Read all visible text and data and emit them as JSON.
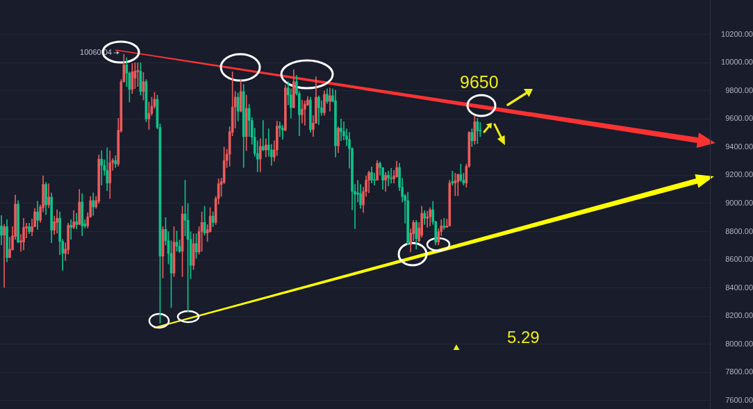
{
  "chart_data": {
    "type": "candlestick",
    "categories": [
      null,
      null,
      null,
      null,
      null,
      null,
      null,
      null,
      null,
      null,
      null,
      null,
      null,
      null,
      null,
      null,
      null,
      null,
      null,
      null,
      null,
      null,
      null,
      null,
      null,
      null,
      null,
      null,
      null,
      null,
      null,
      null,
      null,
      null,
      null,
      null,
      null,
      null,
      null,
      null,
      null,
      null,
      null,
      null,
      null,
      null,
      null,
      null,
      null,
      null,
      null,
      null,
      null,
      null,
      null,
      null,
      null,
      null,
      null,
      null,
      null,
      null,
      null,
      null,
      null,
      null,
      null,
      null,
      null,
      null,
      null,
      null,
      null,
      null,
      null,
      null,
      null,
      null,
      null,
      null,
      null,
      null,
      null,
      null,
      null,
      null,
      null,
      null,
      null,
      null,
      null,
      null,
      null,
      null,
      null,
      null,
      null,
      null,
      null,
      null,
      null,
      null,
      null,
      null,
      null,
      null,
      null,
      null,
      null,
      null,
      null,
      null,
      null,
      null,
      null,
      null,
      null,
      null,
      null,
      null,
      null,
      null,
      null,
      null,
      null,
      null,
      null,
      null,
      null,
      null,
      null,
      null,
      null,
      null,
      null,
      null,
      null,
      null,
      null,
      null,
      null,
      null,
      null,
      null,
      null,
      null,
      null,
      null,
      null,
      null,
      null,
      null,
      null,
      null,
      null,
      null,
      null,
      null,
      null,
      null,
      null,
      null,
      null,
      null,
      null,
      null,
      null,
      null,
      null,
      null,
      null,
      null,
      null,
      null,
      null,
      null,
      null,
      null,
      null,
      null,
      null,
      null,
      null,
      null,
      null,
      null,
      null,
      null,
      null,
      null,
      null,
      null,
      null,
      null,
      null,
      null,
      null,
      null,
      null,
      null,
      null,
      null,
      null,
      null,
      null,
      null,
      null,
      null,
      null,
      null,
      null,
      null,
      null,
      null,
      null,
      null,
      null,
      null,
      null,
      null,
      null,
      null,
      null,
      null,
      null,
      null,
      null,
      null,
      null,
      null,
      null,
      null,
      null,
      null,
      null,
      null,
      null,
      null,
      null,
      null,
      null,
      null,
      null,
      null,
      null,
      null,
      null,
      null,
      null,
      null,
      null,
      null,
      null,
      null,
      null
    ],
    "ohlc": [
      [
        8840,
        8915,
        8705,
        8775
      ],
      [
        8775,
        8850,
        8405,
        8835
      ],
      [
        8835,
        8885,
        8585,
        8615
      ],
      [
        8615,
        8760,
        8615,
        8675
      ],
      [
        8670,
        8835,
        8670,
        8770
      ],
      [
        8765,
        9060,
        8745,
        8995
      ],
      [
        8995,
        9020,
        8720,
        8725
      ],
      [
        8725,
        8780,
        8660,
        8735
      ],
      [
        8725,
        8895,
        8670,
        8830
      ],
      [
        8825,
        8860,
        8755,
        8835
      ],
      [
        8835,
        8860,
        8785,
        8800
      ],
      [
        8800,
        8890,
        8770,
        8835
      ],
      [
        8835,
        8965,
        8835,
        8940
      ],
      [
        8940,
        9015,
        8815,
        8880
      ],
      [
        8880,
        8990,
        8865,
        8975
      ],
      [
        8970,
        9195,
        8940,
        9135
      ],
      [
        9135,
        9150,
        8920,
        8990
      ],
      [
        8990,
        9140,
        8970,
        9045
      ],
      [
        9045,
        9075,
        8720,
        8810
      ],
      [
        8810,
        8910,
        8780,
        8870
      ],
      [
        8865,
        8955,
        8790,
        8895
      ],
      [
        8895,
        8940,
        8635,
        8730
      ],
      [
        8730,
        8745,
        8525,
        8645
      ],
      [
        8645,
        8720,
        8595,
        8675
      ],
      [
        8670,
        8860,
        8640,
        8845
      ],
      [
        8845,
        8885,
        8745,
        8830
      ],
      [
        8830,
        8950,
        8820,
        8870
      ],
      [
        8870,
        8930,
        8820,
        8850
      ],
      [
        8850,
        9100,
        8850,
        9010
      ],
      [
        9010,
        9070,
        8770,
        8840
      ],
      [
        8855,
        8885,
        8825,
        8840
      ],
      [
        8840,
        8935,
        8825,
        8905
      ],
      [
        8905,
        9050,
        8900,
        9020
      ],
      [
        9020,
        9075,
        8915,
        8975
      ],
      [
        8975,
        9050,
        8965,
        9020
      ],
      [
        9015,
        9345,
        9000,
        9315
      ],
      [
        9315,
        9375,
        9130,
        9270
      ],
      [
        9270,
        9310,
        9200,
        9235
      ],
      [
        9235,
        9395,
        9090,
        9145
      ],
      [
        9145,
        9375,
        9035,
        9290
      ],
      [
        9290,
        9320,
        9235,
        9305
      ],
      [
        9305,
        9340,
        9255,
        9280
      ],
      [
        9280,
        9605,
        9265,
        9520
      ],
      [
        9515,
        9880,
        9505,
        9865
      ],
      [
        9865,
        10060.04,
        9860,
        9985
      ],
      [
        9985,
        10035,
        9830,
        9925
      ],
      [
        9925,
        9935,
        9720,
        9810
      ],
      [
        9810,
        9995,
        9780,
        9935
      ],
      [
        9890,
        10000,
        9815,
        9940
      ],
      [
        9935,
        10000,
        9830,
        9945
      ],
      [
        9940,
        10000,
        9770,
        9795
      ],
      [
        9795,
        9930,
        9735,
        9865
      ],
      [
        9865,
        9880,
        9580,
        9600
      ],
      [
        9600,
        9720,
        9525,
        9640
      ],
      [
        9640,
        9755,
        9625,
        9690
      ],
      [
        9690,
        9790,
        9675,
        9740
      ],
      [
        9740,
        9770,
        9530,
        9540
      ],
      [
        9540,
        9565,
        8150,
        8625
      ],
      [
        8625,
        8835,
        8470,
        8815
      ],
      [
        8815,
        8900,
        8705,
        8735
      ],
      [
        8735,
        8800,
        8570,
        8645
      ],
      [
        8645,
        8735,
        8260,
        8505
      ],
      [
        8505,
        8835,
        8480,
        8725
      ],
      [
        8725,
        8805,
        8660,
        8695
      ],
      [
        8695,
        8740,
        8650,
        8660
      ],
      [
        8660,
        8980,
        8480,
        8925
      ],
      [
        8925,
        9165,
        8770,
        8880
      ],
      [
        8880,
        9000,
        8230,
        8745
      ],
      [
        8745,
        8800,
        8465,
        8560
      ],
      [
        8560,
        8785,
        8530,
        8715
      ],
      [
        8715,
        8785,
        8610,
        8655
      ],
      [
        8655,
        8835,
        8640,
        8800
      ],
      [
        8800,
        8940,
        8660,
        8865
      ],
      [
        8865,
        8980,
        8775,
        8790
      ],
      [
        8790,
        8850,
        8730,
        8815
      ],
      [
        8800,
        8970,
        8795,
        8910
      ],
      [
        8910,
        8940,
        8835,
        8865
      ],
      [
        8865,
        9050,
        8850,
        9035
      ],
      [
        9035,
        9175,
        8995,
        9140
      ],
      [
        9135,
        9180,
        9050,
        9155
      ],
      [
        9150,
        9400,
        9140,
        9305
      ],
      [
        9305,
        9385,
        9255,
        9350
      ],
      [
        9350,
        9545,
        9265,
        9510
      ],
      [
        9505,
        9935,
        9480,
        9685
      ],
      [
        9685,
        9795,
        9535,
        9755
      ],
      [
        9755,
        9785,
        9585,
        9655
      ],
      [
        9655,
        9880,
        9650,
        9795
      ],
      [
        9795,
        9845,
        9255,
        9475
      ],
      [
        9475,
        9770,
        9375,
        9675
      ],
      [
        9675,
        9705,
        9475,
        9590
      ],
      [
        9590,
        9610,
        9420,
        9470
      ],
      [
        9470,
        9535,
        9335,
        9355
      ],
      [
        9355,
        9445,
        9225,
        9315
      ],
      [
        9315,
        9460,
        9225,
        9405
      ],
      [
        9405,
        9590,
        9375,
        9380
      ],
      [
        9380,
        9460,
        9330,
        9415
      ],
      [
        9415,
        9530,
        9335,
        9380
      ],
      [
        9380,
        9420,
        9270,
        9330
      ],
      [
        9330,
        9445,
        9300,
        9380
      ],
      [
        9380,
        9585,
        9340,
        9550
      ],
      [
        9550,
        9580,
        9475,
        9535
      ],
      [
        9535,
        9555,
        9455,
        9520
      ],
      [
        9520,
        9840,
        9515,
        9820
      ],
      [
        9820,
        9865,
        9700,
        9770
      ],
      [
        9770,
        9815,
        9605,
        9680
      ],
      [
        9680,
        9950,
        9680,
        9865
      ],
      [
        9865,
        9910,
        9770,
        9780
      ],
      [
        9780,
        9795,
        9480,
        9630
      ],
      [
        9630,
        9735,
        9570,
        9670
      ],
      [
        9670,
        9730,
        9555,
        9705
      ],
      [
        9700,
        9760,
        9695,
        9735
      ],
      [
        9735,
        9755,
        9505,
        9525
      ],
      [
        9525,
        9625,
        9475,
        9570
      ],
      [
        9570,
        9900,
        9570,
        9755
      ],
      [
        9755,
        9765,
        9560,
        9680
      ],
      [
        9680,
        9730,
        9625,
        9645
      ],
      [
        9645,
        9800,
        9625,
        9775
      ],
      [
        9775,
        9815,
        9710,
        9725
      ],
      [
        9725,
        9820,
        9655,
        9765
      ],
      [
        9765,
        9815,
        9720,
        9725
      ],
      [
        9730,
        9805,
        9330,
        9410
      ],
      [
        9410,
        9545,
        9360,
        9535
      ],
      [
        9535,
        9600,
        9445,
        9510
      ],
      [
        9510,
        9580,
        9450,
        9480
      ],
      [
        9480,
        9530,
        9410,
        9455
      ],
      [
        9455,
        9505,
        9250,
        9390
      ],
      [
        9390,
        9395,
        8955,
        9085
      ],
      [
        9085,
        9135,
        8820,
        9065
      ],
      [
        9075,
        9165,
        9010,
        9065
      ],
      [
        9070,
        9135,
        8965,
        8990
      ],
      [
        8990,
        9115,
        8935,
        9085
      ],
      [
        9085,
        9195,
        9050,
        9165
      ],
      [
        9165,
        9230,
        9075,
        9220
      ],
      [
        9220,
        9260,
        9145,
        9165
      ],
      [
        9170,
        9215,
        9130,
        9165
      ],
      [
        9165,
        9305,
        9165,
        9285
      ],
      [
        9285,
        9295,
        9200,
        9255
      ],
      [
        9255,
        9255,
        9100,
        9165
      ],
      [
        9165,
        9220,
        9085,
        9200
      ],
      [
        9200,
        9230,
        9125,
        9180
      ],
      [
        9180,
        9250,
        9145,
        9175
      ],
      [
        9175,
        9235,
        9145,
        9195
      ],
      [
        9190,
        9300,
        9185,
        9255
      ],
      [
        9255,
        9285,
        9090,
        9115
      ],
      [
        9115,
        9180,
        9010,
        9050
      ],
      [
        9055,
        9065,
        8860,
        9020
      ],
      [
        9020,
        9080,
        8705,
        8715
      ],
      [
        8715,
        8820,
        8655,
        8790
      ],
      [
        8785,
        8880,
        8735,
        8865
      ],
      [
        8865,
        8880,
        8675,
        8750
      ],
      [
        8735,
        8865,
        8725,
        8825
      ],
      [
        8775,
        8980,
        8760,
        8930
      ],
      [
        8930,
        8950,
        8850,
        8895
      ],
      [
        8895,
        8945,
        8830,
        8905
      ],
      [
        8905,
        8970,
        8840,
        8955
      ],
      [
        8955,
        9015,
        8850,
        8870
      ],
      [
        8870,
        8875,
        8705,
        8725
      ],
      [
        8725,
        8820,
        8705,
        8800
      ],
      [
        8800,
        8885,
        8770,
        8840
      ],
      [
        8840,
        8895,
        8815,
        8830
      ],
      [
        8830,
        8890,
        8830,
        8840
      ],
      [
        8840,
        9165,
        8840,
        9145
      ],
      [
        9155,
        9230,
        9130,
        9145
      ],
      [
        9145,
        9215,
        9055,
        9160
      ],
      [
        9155,
        9210,
        9055,
        9205
      ],
      [
        9205,
        9280,
        9155,
        9165
      ],
      [
        9165,
        9215,
        9130,
        9145
      ],
      [
        9145,
        9280,
        9115,
        9265
      ],
      [
        9265,
        9510,
        9255,
        9505
      ],
      [
        9505,
        9530,
        9405,
        9445
      ],
      [
        9445,
        9620,
        9420,
        9580
      ],
      [
        9580,
        9605,
        9425,
        9515
      ],
      [
        9520,
        9575,
        9475,
        9515
      ],
      null,
      null,
      null,
      null,
      null,
      null,
      null,
      null,
      null,
      null,
      null,
      null,
      null,
      null,
      null,
      null,
      null,
      null,
      null,
      null,
      null,
      null,
      null,
      null,
      null,
      null,
      null,
      null,
      null,
      null,
      null,
      null,
      null,
      null,
      null,
      null,
      null,
      null,
      null,
      null,
      null,
      null,
      null,
      null,
      null,
      null,
      null,
      null,
      null,
      null,
      null,
      null,
      null,
      null,
      null,
      null,
      null,
      null,
      null,
      null,
      null,
      null,
      null,
      null,
      null,
      null,
      null,
      null,
      null,
      null,
      null,
      null,
      null,
      null,
      null,
      null,
      null,
      null,
      null,
      null,
      null,
      null
    ],
    "colors": [
      "#0dc38a",
      "#ec5b5b",
      "#0dc38a",
      "#ec5b5b",
      "#ec5b5b",
      "#ec5b5b",
      "#0dc38a",
      "#ec5b5b",
      "#ec5b5b",
      "#ec5b5b",
      "#0dc38a",
      "#ec5b5b",
      "#ec5b5b",
      "#0dc38a",
      "#ec5b5b",
      "#ec5b5b",
      "#0dc38a",
      "#ec5b5b",
      "#0dc38a",
      "#ec5b5b",
      "#ec5b5b",
      "#0dc38a",
      "#0dc38a",
      "#ec5b5b",
      "#ec5b5b",
      "#0dc38a",
      "#ec5b5b",
      "#0dc38a",
      "#ec5b5b",
      "#0dc38a",
      "#0dc38a",
      "#ec5b5b",
      "#ec5b5b",
      "#0dc38a",
      "#ec5b5b",
      "#ec5b5b",
      "#0dc38a",
      "#0dc38a",
      "#0dc38a",
      "#ec5b5b",
      "#ec5b5b",
      "#0dc38a",
      "#ec5b5b",
      "#ec5b5b",
      "#ec5b5b",
      "#0dc38a",
      "#0dc38a",
      "#ec5b5b",
      "#ec5b5b",
      "#ec5b5b",
      "#0dc38a",
      "#ec5b5b",
      "#0dc38a",
      "#ec5b5b",
      "#ec5b5b",
      "#ec5b5b",
      "#0dc38a",
      "#0dc38a",
      "#ec5b5b",
      "#0dc38a",
      "#0dc38a",
      "#0dc38a",
      "#ec5b5b",
      "#0dc38a",
      "#0dc38a",
      "#ec5b5b",
      "#0dc38a",
      "#0dc38a",
      "#0dc38a",
      "#ec5b5b",
      "#0dc38a",
      "#ec5b5b",
      "#ec5b5b",
      "#0dc38a",
      "#ec5b5b",
      "#ec5b5b",
      "#0dc38a",
      "#ec5b5b",
      "#ec5b5b",
      "#ec5b5b",
      "#ec5b5b",
      "#ec5b5b",
      "#ec5b5b",
      "#ec5b5b",
      "#ec5b5b",
      "#0dc38a",
      "#ec5b5b",
      "#0dc38a",
      "#ec5b5b",
      "#0dc38a",
      "#0dc38a",
      "#0dc38a",
      "#0dc38a",
      "#ec5b5b",
      "#0dc38a",
      "#ec5b5b",
      "#0dc38a",
      "#0dc38a",
      "#ec5b5b",
      "#ec5b5b",
      "#0dc38a",
      "#0dc38a",
      "#ec5b5b",
      "#0dc38a",
      "#0dc38a",
      "#ec5b5b",
      "#0dc38a",
      "#0dc38a",
      "#ec5b5b",
      "#ec5b5b",
      "#ec5b5b",
      "#0dc38a",
      "#ec5b5b",
      "#ec5b5b",
      "#0dc38a",
      "#0dc38a",
      "#ec5b5b",
      "#0dc38a",
      "#ec5b5b",
      "#0dc38a",
      "#0dc38a",
      "#ec5b5b",
      "#0dc38a",
      "#0dc38a",
      "#0dc38a",
      "#0dc38a",
      "#0dc38a",
      "#0dc38a",
      "#0dc38a",
      "#0dc38a",
      "#ec5b5b",
      "#ec5b5b",
      "#ec5b5b",
      "#0dc38a",
      "#0dc38a",
      "#ec5b5b",
      "#0dc38a",
      "#0dc38a",
      "#ec5b5b",
      "#0dc38a",
      "#0dc38a",
      "#ec5b5b",
      "#ec5b5b",
      "#0dc38a",
      "#0dc38a",
      "#0dc38a",
      "#0dc38a",
      "#ec5b5b",
      "#ec5b5b",
      "#0dc38a",
      "#ec5b5b",
      "#ec5b5b",
      "#0dc38a",
      "#ec5b5b",
      "#ec5b5b",
      "#0dc38a",
      "#0dc38a",
      "#ec5b5b",
      "#ec5b5b",
      "#0dc38a",
      "#ec5b5b",
      "#ec5b5b",
      "#0dc38a",
      "#ec5b5b",
      "#ec5b5b",
      "#0dc38a",
      "#0dc38a",
      "#ec5b5b",
      "#ec5b5b",
      "#0dc38a",
      "#ec5b5b",
      "#0dc38a",
      "#0dc38a",
      null,
      null,
      null,
      null,
      null,
      null,
      null,
      null,
      null,
      null,
      null,
      null,
      null,
      null,
      null,
      null,
      null,
      null,
      null,
      null,
      null,
      null,
      null,
      null,
      null,
      null,
      null,
      null,
      null,
      null,
      null,
      null,
      null,
      null,
      null,
      null,
      null,
      null,
      null,
      null,
      null,
      null,
      null,
      null,
      null,
      null,
      null,
      null,
      null,
      null,
      null,
      null,
      null,
      null,
      null,
      null,
      null,
      null,
      null,
      null,
      null,
      null,
      null,
      null,
      null,
      null,
      null,
      null,
      null,
      null,
      null,
      null,
      null,
      null,
      null,
      null,
      null,
      null,
      null,
      null,
      null,
      null
    ],
    "ylim": [
      7540,
      10445
    ],
    "yticks": [
      {
        "value": 7600,
        "label": "7600.00"
      },
      {
        "value": 7800,
        "label": "7800.00"
      },
      {
        "value": 8000,
        "label": "8000.00"
      },
      {
        "value": 8200,
        "label": "8200.00"
      },
      {
        "value": 8400,
        "label": "8400.00"
      },
      {
        "value": 8600,
        "label": "8600.00"
      },
      {
        "value": 8800,
        "label": "8800.00"
      },
      {
        "value": 9000,
        "label": "9000.00"
      },
      {
        "value": 9200,
        "label": "9200.00"
      },
      {
        "value": 9400,
        "label": "9400.00"
      },
      {
        "value": 9600,
        "label": "9600.00"
      },
      {
        "value": 9800,
        "label": "9800.00"
      },
      {
        "value": 10000,
        "label": "10000.00"
      },
      {
        "value": 10200,
        "label": "10200.00"
      }
    ],
    "grid": "y",
    "tick_labels": "y",
    "annotations": [
      "10060.04",
      "9650",
      "5.29"
    ]
  }
}
